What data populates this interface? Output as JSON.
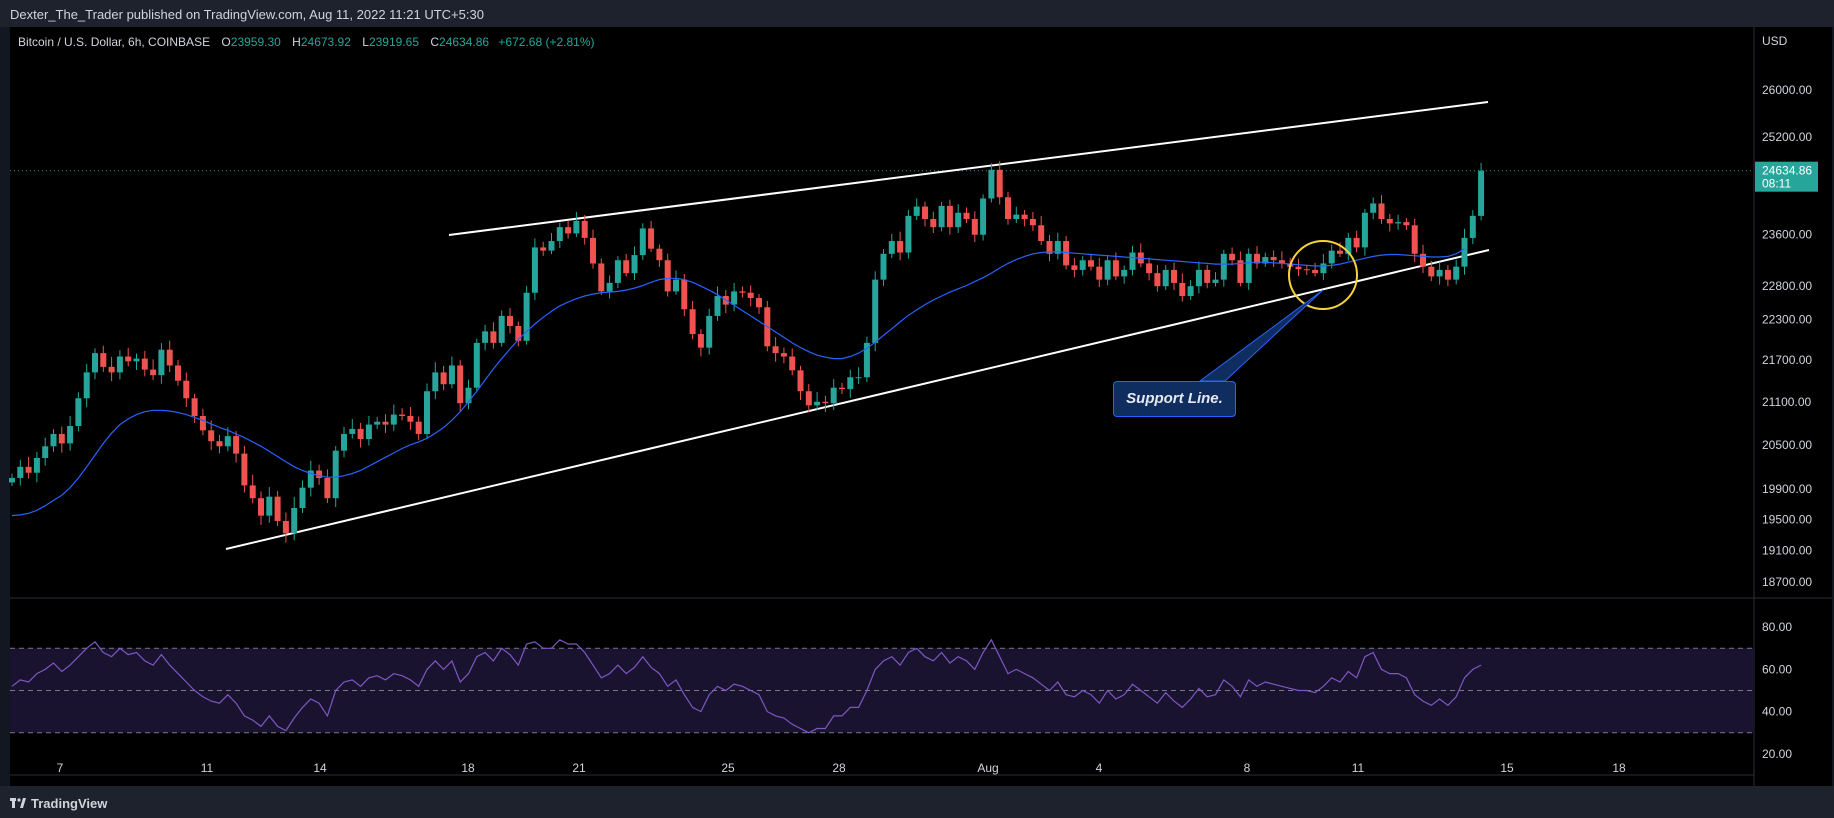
{
  "header": {
    "publisher_line": "Dexter_The_Trader published on TradingView.com, Aug 11, 2022 11:21 UTC+5:30"
  },
  "legend": {
    "symbol": "Bitcoin / U.S. Dollar, 6h, COINBASE",
    "open_label": "O",
    "open": "23959.30",
    "high_label": "H",
    "high": "24673.92",
    "low_label": "L",
    "low": "23919.65",
    "close_label": "C",
    "close": "24634.86",
    "change": "+672.68 (+2.81%)"
  },
  "price_badge": {
    "price": "24634.86",
    "countdown": "08:11",
    "color": "#26a69a"
  },
  "annotation": {
    "text": "Support Line."
  },
  "footer": {
    "brand": "TradingView"
  },
  "colors": {
    "up": "#26a69a",
    "down": "#ef5350",
    "ma": "#2962ff",
    "rsi": "#7e57c2",
    "channel": "#ffffff",
    "circle": "#f5d33b"
  },
  "chart_data": [
    {
      "type": "candlestick",
      "title": "Bitcoin / U.S. Dollar, 6h, COINBASE",
      "y_unit": "USD",
      "y_ticks": [
        26000,
        25200,
        23600,
        22800,
        22300,
        21700,
        21100,
        20500,
        19900,
        19500,
        19100,
        18700
      ],
      "x_ticks": [
        "7",
        "11",
        "14",
        "18",
        "21",
        "25",
        "28",
        "Aug",
        "4",
        "8",
        "11",
        "15",
        "18"
      ],
      "ylim": [
        18500,
        26800
      ],
      "last_price": 24634.86,
      "close_series": [
        20050,
        20200,
        20120,
        20320,
        20480,
        20650,
        20520,
        20760,
        21150,
        21520,
        21800,
        21600,
        21520,
        21750,
        21680,
        21720,
        21560,
        21480,
        21850,
        21620,
        21400,
        21150,
        20900,
        20700,
        20550,
        20480,
        20620,
        20380,
        19950,
        19780,
        19550,
        19800,
        19480,
        19320,
        19650,
        19920,
        20150,
        20050,
        19780,
        20420,
        20650,
        20720,
        20580,
        20780,
        20820,
        20780,
        20920,
        20900,
        20820,
        20650,
        21250,
        21520,
        21350,
        21620,
        21080,
        21300,
        21950,
        22120,
        21950,
        22350,
        22200,
        21980,
        22700,
        23400,
        23350,
        23500,
        23720,
        23620,
        23820,
        23550,
        23150,
        22720,
        22850,
        23200,
        23000,
        23280,
        23700,
        23380,
        23200,
        22720,
        22900,
        22450,
        22080,
        21880,
        22350,
        22650,
        22520,
        22720,
        22700,
        22620,
        22480,
        21900,
        21800,
        21750,
        21550,
        21250,
        21050,
        21100,
        21080,
        21300,
        21280,
        21450,
        21450,
        21950,
        22900,
        23300,
        23500,
        23320,
        23900,
        24050,
        23850,
        23720,
        24060,
        23720,
        23950,
        23850,
        23600,
        24180,
        24650,
        24200,
        23850,
        23920,
        23850,
        23750,
        23500,
        23300,
        23500,
        23120,
        23050,
        23200,
        23100,
        22900,
        23200,
        22950,
        23050,
        23320,
        23150,
        23000,
        22800,
        23050,
        22850,
        22650,
        22800,
        23050,
        22850,
        22900,
        23300,
        23200,
        22850,
        23300,
        23150,
        23250,
        23200,
        23150,
        23100,
        23060,
        23050,
        23000,
        23150,
        23350,
        23300,
        23550,
        23400,
        23950,
        24100,
        23850,
        23780,
        23800,
        23750,
        23300,
        23100,
        22950,
        23050,
        22900,
        23100,
        23550,
        23900,
        24634.86
      ],
      "moving_average": {
        "values": [
          19550,
          19560,
          19580,
          19620,
          19680,
          19750,
          19820,
          19920,
          20050,
          20200,
          20360,
          20520,
          20660,
          20780,
          20860,
          20920,
          20960,
          20980,
          20980,
          20970,
          20950,
          20920,
          20880,
          20840,
          20790,
          20740,
          20700,
          20650,
          20600,
          20540,
          20480,
          20410,
          20340,
          20270,
          20200,
          20150,
          20110,
          20080,
          20060,
          20060,
          20080,
          20110,
          20150,
          20210,
          20270,
          20330,
          20390,
          20450,
          20500,
          20540,
          20590,
          20660,
          20740,
          20840,
          20960,
          21100,
          21250,
          21410,
          21570,
          21720,
          21860,
          22000,
          22120,
          22230,
          22330,
          22420,
          22500,
          22560,
          22610,
          22650,
          22680,
          22700,
          22710,
          22720,
          22740,
          22770,
          22810,
          22860,
          22900,
          22920,
          22920,
          22900,
          22860,
          22800,
          22740,
          22670,
          22590,
          22510,
          22430,
          22350,
          22270,
          22190,
          22110,
          22030,
          21950,
          21880,
          21820,
          21770,
          21740,
          21720,
          21720,
          21750,
          21800,
          21870,
          21960,
          22060,
          22160,
          22260,
          22360,
          22440,
          22520,
          22590,
          22650,
          22710,
          22760,
          22810,
          22870,
          22930,
          23000,
          23080,
          23150,
          23210,
          23260,
          23300,
          23320,
          23330,
          23330,
          23320,
          23310,
          23300,
          23290,
          23280,
          23270,
          23260,
          23250,
          23240,
          23230,
          23220,
          23210,
          23200,
          23190,
          23180,
          23170,
          23160,
          23150,
          23140,
          23140,
          23140,
          23150,
          23160,
          23170,
          23170,
          23160,
          23150,
          23140,
          23130,
          23120,
          23110,
          23110,
          23120,
          23140,
          23170,
          23200,
          23230,
          23260,
          23280,
          23290,
          23290,
          23280,
          23270,
          23260,
          23250,
          23250,
          23260,
          23300,
          23380
        ]
      },
      "channel_upper": {
        "from": [
          0.244,
          23700
        ],
        "to": [
          1.0,
          26300
        ]
      },
      "channel_lower": {
        "from": [
          0.13,
          19150
        ],
        "to": [
          1.0,
          23700
        ]
      }
    },
    {
      "type": "line",
      "title": "",
      "y_ticks": [
        80,
        60,
        40,
        20
      ],
      "ylim": [
        10,
        90
      ],
      "bands": {
        "upper": 70,
        "middle": 50,
        "lower": 30
      },
      "values": [
        52,
        55,
        54,
        58,
        60,
        63,
        59,
        62,
        66,
        70,
        73,
        68,
        66,
        70,
        67,
        68,
        64,
        62,
        67,
        62,
        58,
        54,
        50,
        47,
        45,
        44,
        48,
        44,
        38,
        36,
        33,
        38,
        33,
        31,
        37,
        42,
        46,
        44,
        38,
        50,
        54,
        55,
        52,
        56,
        57,
        55,
        58,
        57,
        55,
        52,
        60,
        64,
        60,
        64,
        54,
        58,
        66,
        68,
        64,
        70,
        67,
        62,
        72,
        73,
        70,
        70,
        74,
        72,
        72,
        68,
        62,
        56,
        58,
        62,
        58,
        61,
        66,
        61,
        58,
        52,
        55,
        48,
        42,
        40,
        48,
        52,
        50,
        53,
        52,
        50,
        48,
        40,
        38,
        37,
        34,
        32,
        30,
        32,
        32,
        38,
        38,
        42,
        42,
        50,
        60,
        64,
        66,
        62,
        68,
        70,
        66,
        64,
        68,
        63,
        66,
        64,
        60,
        68,
        74,
        66,
        58,
        60,
        58,
        56,
        53,
        50,
        54,
        48,
        47,
        50,
        48,
        44,
        50,
        46,
        48,
        53,
        50,
        47,
        44,
        49,
        45,
        42,
        46,
        51,
        47,
        48,
        55,
        52,
        47,
        55,
        52,
        54,
        53,
        52,
        51,
        50,
        50,
        49,
        52,
        56,
        54,
        59,
        56,
        66,
        68,
        60,
        58,
        58,
        56,
        48,
        45,
        43,
        46,
        43,
        47,
        56,
        60,
        62
      ]
    }
  ]
}
